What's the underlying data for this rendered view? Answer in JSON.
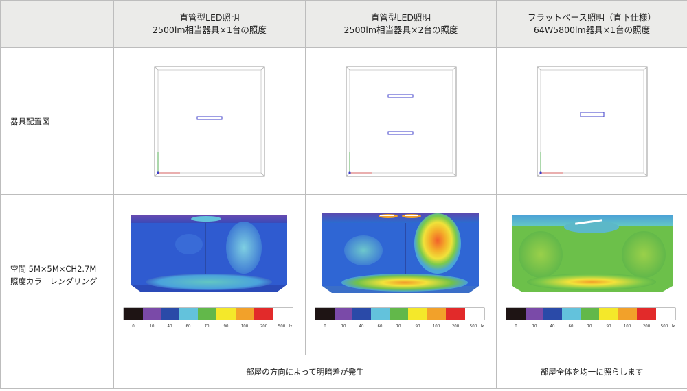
{
  "header": {
    "col1": {
      "line1": "直管型LED照明",
      "line2": "2500lm相当器具×1台の照度"
    },
    "col2": {
      "line1": "直管型LED照明",
      "line2": "2500lm相当器具×2台の照度"
    },
    "col3": {
      "line1": "フラットベース照明（直下仕様）",
      "line2": "64W5800lm器具×1台の照度"
    }
  },
  "rows": {
    "layout_label": "器具配置図",
    "render_label_line1": "空間 5M×5M×CH2.7M",
    "render_label_line2": "照度カラーレンダリング"
  },
  "legend": {
    "ticks": [
      "0",
      "10",
      "40",
      "60",
      "70",
      "90",
      "100",
      "200",
      "500"
    ],
    "unit": "lx",
    "colors": [
      "#1e1414",
      "#7a4aa8",
      "#2a4aa8",
      "#63c2dc",
      "#62b84a",
      "#f4e82a",
      "#f2a12a",
      "#e22a2a",
      "#ffffff"
    ]
  },
  "footer": {
    "left": "部屋の方向によって明暗差が発生",
    "right": "部屋全体を均一に照らします"
  }
}
